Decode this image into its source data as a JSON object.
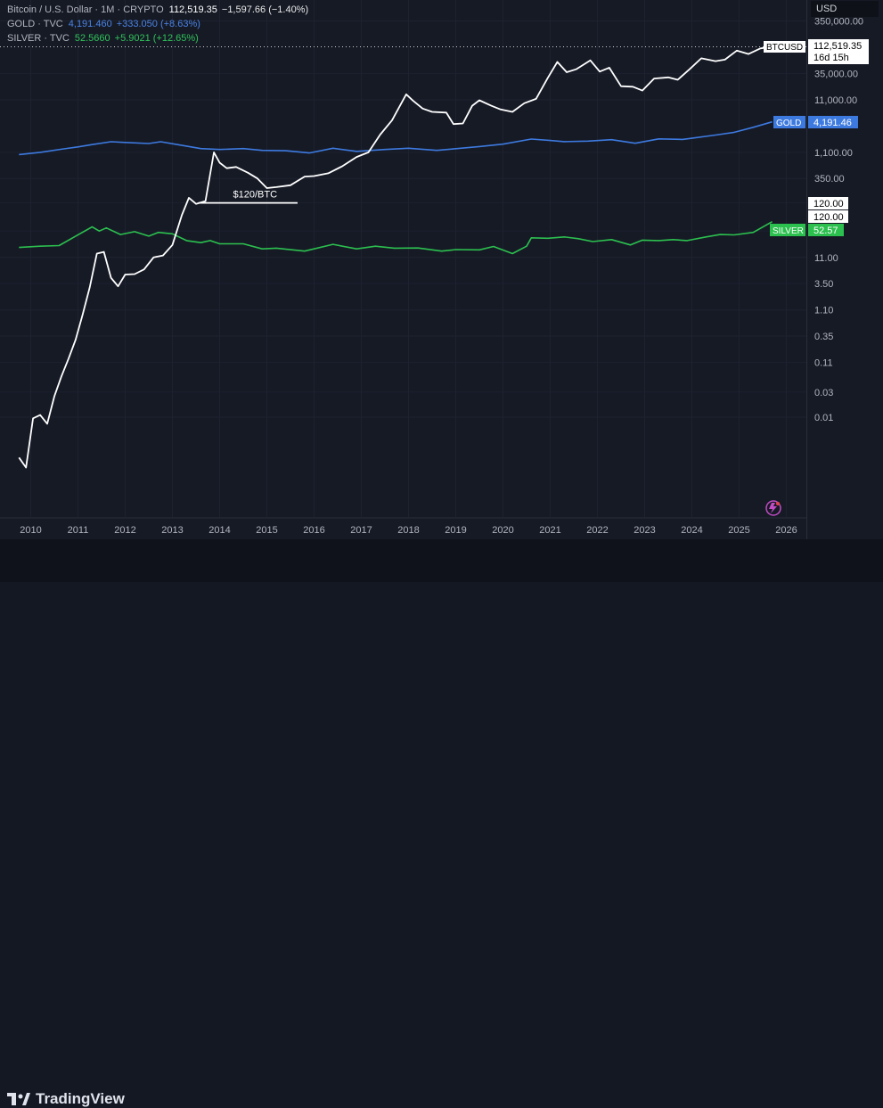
{
  "legend": {
    "btc": {
      "name": "Bitcoin / U.S. Dollar · 1M · CRYPTO",
      "price": "112,519.35",
      "change": "−1,597.66 (−1.40%)"
    },
    "gold": {
      "name": "GOLD · TVC",
      "price": "4,191.460",
      "change": "+333.050 (+8.63%)"
    },
    "silver": {
      "name": "SILVER · TVC",
      "price": "52.5660",
      "change": "+5.9021 (+12.65%)"
    }
  },
  "scale": {
    "currency": "USD"
  },
  "brand": {
    "name": "TradingView"
  },
  "labels": {
    "btc_tag": "BTCUSD",
    "btc_price": "112,519.35",
    "btc_countdown": "16d 15h",
    "gold_tag": "GOLD",
    "gold_price": "4,191.46",
    "silver_tag": "SILVER",
    "silver_price": "52.57",
    "level_1": "120.00",
    "level_2": "120.00",
    "annotation": "$120/BTC"
  },
  "colors": {
    "btc": "#ffffff",
    "gold": "#3d7ae0",
    "silver": "#2cc04f",
    "background": "#161a25",
    "grid": "#1e2230"
  },
  "chart_data": {
    "type": "line",
    "scale": "log",
    "x_range": [
      2009.6,
      2026.6
    ],
    "y_ticks": [
      0.01,
      0.03,
      0.11,
      0.35,
      1.1,
      3.5,
      11.0,
      35.0,
      120.0,
      350.0,
      1100.0,
      11000.0,
      35000.0,
      350000.0
    ],
    "y_tick_labels": [
      "0.01",
      "0.03",
      "0.11",
      "0.35",
      "1.10",
      "3.50",
      "11.00",
      "35.00",
      "120.00",
      "350.00",
      "1,100.00",
      "11,000.00",
      "35,000.00",
      "350,000.00"
    ],
    "x_ticks": [
      "2010",
      "2011",
      "2012",
      "2013",
      "2014",
      "2015",
      "2016",
      "2017",
      "2018",
      "2019",
      "2020",
      "2021",
      "2022",
      "2023",
      "2024",
      "2025",
      "2026"
    ],
    "annotation": {
      "text": "$120/BTC",
      "x_start": 2013.55,
      "x_end": 2015.65,
      "y": 120
    },
    "series": [
      {
        "name": "BTCUSD",
        "color": "#ffffff",
        "points": [
          [
            2009.75,
            0.0017
          ],
          [
            2009.9,
            0.0011
          ],
          [
            2010.05,
            0.0095
          ],
          [
            2010.2,
            0.011
          ],
          [
            2010.35,
            0.0075
          ],
          [
            2010.5,
            0.025
          ],
          [
            2010.65,
            0.06
          ],
          [
            2010.8,
            0.13
          ],
          [
            2010.95,
            0.3
          ],
          [
            2011.1,
            0.9
          ],
          [
            2011.25,
            3.0
          ],
          [
            2011.4,
            13
          ],
          [
            2011.55,
            14
          ],
          [
            2011.7,
            4.5
          ],
          [
            2011.85,
            3.1
          ],
          [
            2012.0,
            5.2
          ],
          [
            2012.2,
            5.3
          ],
          [
            2012.4,
            6.5
          ],
          [
            2012.6,
            11
          ],
          [
            2012.8,
            12
          ],
          [
            2013.0,
            19
          ],
          [
            2013.2,
            70
          ],
          [
            2013.35,
            150
          ],
          [
            2013.5,
            115
          ],
          [
            2013.7,
            130
          ],
          [
            2013.88,
            1100
          ],
          [
            2014.0,
            700
          ],
          [
            2014.15,
            550
          ],
          [
            2014.35,
            580
          ],
          [
            2014.6,
            450
          ],
          [
            2014.8,
            350
          ],
          [
            2015.0,
            230
          ],
          [
            2015.2,
            240
          ],
          [
            2015.5,
            260
          ],
          [
            2015.8,
            380
          ],
          [
            2016.0,
            390
          ],
          [
            2016.3,
            440
          ],
          [
            2016.6,
            600
          ],
          [
            2016.9,
            900
          ],
          [
            2017.15,
            1100
          ],
          [
            2017.4,
            2400
          ],
          [
            2017.65,
            4500
          ],
          [
            2017.95,
            14000
          ],
          [
            2018.1,
            10500
          ],
          [
            2018.3,
            7500
          ],
          [
            2018.5,
            6500
          ],
          [
            2018.8,
            6300
          ],
          [
            2018.95,
            3800
          ],
          [
            2019.15,
            3900
          ],
          [
            2019.35,
            8500
          ],
          [
            2019.5,
            10800
          ],
          [
            2019.75,
            8500
          ],
          [
            2019.95,
            7200
          ],
          [
            2020.2,
            6500
          ],
          [
            2020.45,
            9500
          ],
          [
            2020.7,
            11500
          ],
          [
            2020.95,
            29000
          ],
          [
            2021.15,
            58000
          ],
          [
            2021.35,
            37000
          ],
          [
            2021.55,
            42000
          ],
          [
            2021.85,
            62000
          ],
          [
            2022.05,
            38000
          ],
          [
            2022.25,
            45000
          ],
          [
            2022.5,
            20000
          ],
          [
            2022.75,
            19500
          ],
          [
            2022.95,
            16500
          ],
          [
            2023.2,
            28000
          ],
          [
            2023.5,
            29500
          ],
          [
            2023.7,
            26500
          ],
          [
            2023.95,
            42000
          ],
          [
            2024.2,
            68000
          ],
          [
            2024.5,
            60000
          ],
          [
            2024.7,
            64000
          ],
          [
            2024.95,
            95000
          ],
          [
            2025.2,
            82000
          ],
          [
            2025.45,
            105000
          ],
          [
            2025.7,
            112519.35
          ]
        ]
      },
      {
        "name": "GOLD",
        "color": "#3d7ae0",
        "points": [
          [
            2009.75,
            1000
          ],
          [
            2010.2,
            1100
          ],
          [
            2010.7,
            1280
          ],
          [
            2011.0,
            1400
          ],
          [
            2011.3,
            1550
          ],
          [
            2011.7,
            1750
          ],
          [
            2012.0,
            1700
          ],
          [
            2012.5,
            1620
          ],
          [
            2012.75,
            1750
          ],
          [
            2013.3,
            1450
          ],
          [
            2013.6,
            1300
          ],
          [
            2014.0,
            1250
          ],
          [
            2014.5,
            1300
          ],
          [
            2014.9,
            1200
          ],
          [
            2015.4,
            1180
          ],
          [
            2015.9,
            1070
          ],
          [
            2016.4,
            1320
          ],
          [
            2016.9,
            1150
          ],
          [
            2017.5,
            1250
          ],
          [
            2018.0,
            1320
          ],
          [
            2018.6,
            1200
          ],
          [
            2019.0,
            1290
          ],
          [
            2019.5,
            1420
          ],
          [
            2020.0,
            1580
          ],
          [
            2020.6,
            1970
          ],
          [
            2021.0,
            1850
          ],
          [
            2021.3,
            1760
          ],
          [
            2021.8,
            1800
          ],
          [
            2022.3,
            1920
          ],
          [
            2022.8,
            1640
          ],
          [
            2023.3,
            1990
          ],
          [
            2023.8,
            1940
          ],
          [
            2024.0,
            2040
          ],
          [
            2024.5,
            2350
          ],
          [
            2024.9,
            2650
          ],
          [
            2025.3,
            3300
          ],
          [
            2025.7,
            4191.46
          ]
        ]
      },
      {
        "name": "SILVER",
        "color": "#2cc04f",
        "points": [
          [
            2009.75,
            17
          ],
          [
            2010.2,
            18
          ],
          [
            2010.6,
            18.5
          ],
          [
            2010.95,
            28
          ],
          [
            2011.3,
            42
          ],
          [
            2011.45,
            35
          ],
          [
            2011.6,
            40
          ],
          [
            2011.9,
            30
          ],
          [
            2012.2,
            34
          ],
          [
            2012.5,
            28
          ],
          [
            2012.7,
            33
          ],
          [
            2013.0,
            31
          ],
          [
            2013.3,
            23
          ],
          [
            2013.6,
            21
          ],
          [
            2013.8,
            23
          ],
          [
            2014.0,
            20
          ],
          [
            2014.5,
            20
          ],
          [
            2014.9,
            16
          ],
          [
            2015.2,
            16.5
          ],
          [
            2015.8,
            14.5
          ],
          [
            2016.4,
            19.5
          ],
          [
            2016.9,
            16
          ],
          [
            2017.3,
            18
          ],
          [
            2017.7,
            16.5
          ],
          [
            2018.2,
            16.6
          ],
          [
            2018.7,
            14.5
          ],
          [
            2019.0,
            15.5
          ],
          [
            2019.5,
            15.3
          ],
          [
            2019.8,
            17.8
          ],
          [
            2020.2,
            13
          ],
          [
            2020.5,
            18
          ],
          [
            2020.6,
            26
          ],
          [
            2020.95,
            25.5
          ],
          [
            2021.3,
            27
          ],
          [
            2021.6,
            25
          ],
          [
            2021.9,
            22
          ],
          [
            2022.3,
            24
          ],
          [
            2022.7,
            19
          ],
          [
            2022.95,
            23.5
          ],
          [
            2023.3,
            23
          ],
          [
            2023.6,
            24
          ],
          [
            2023.9,
            23
          ],
          [
            2024.3,
            27
          ],
          [
            2024.6,
            30
          ],
          [
            2024.9,
            29.5
          ],
          [
            2025.3,
            33
          ],
          [
            2025.7,
            52.57
          ]
        ]
      }
    ]
  }
}
